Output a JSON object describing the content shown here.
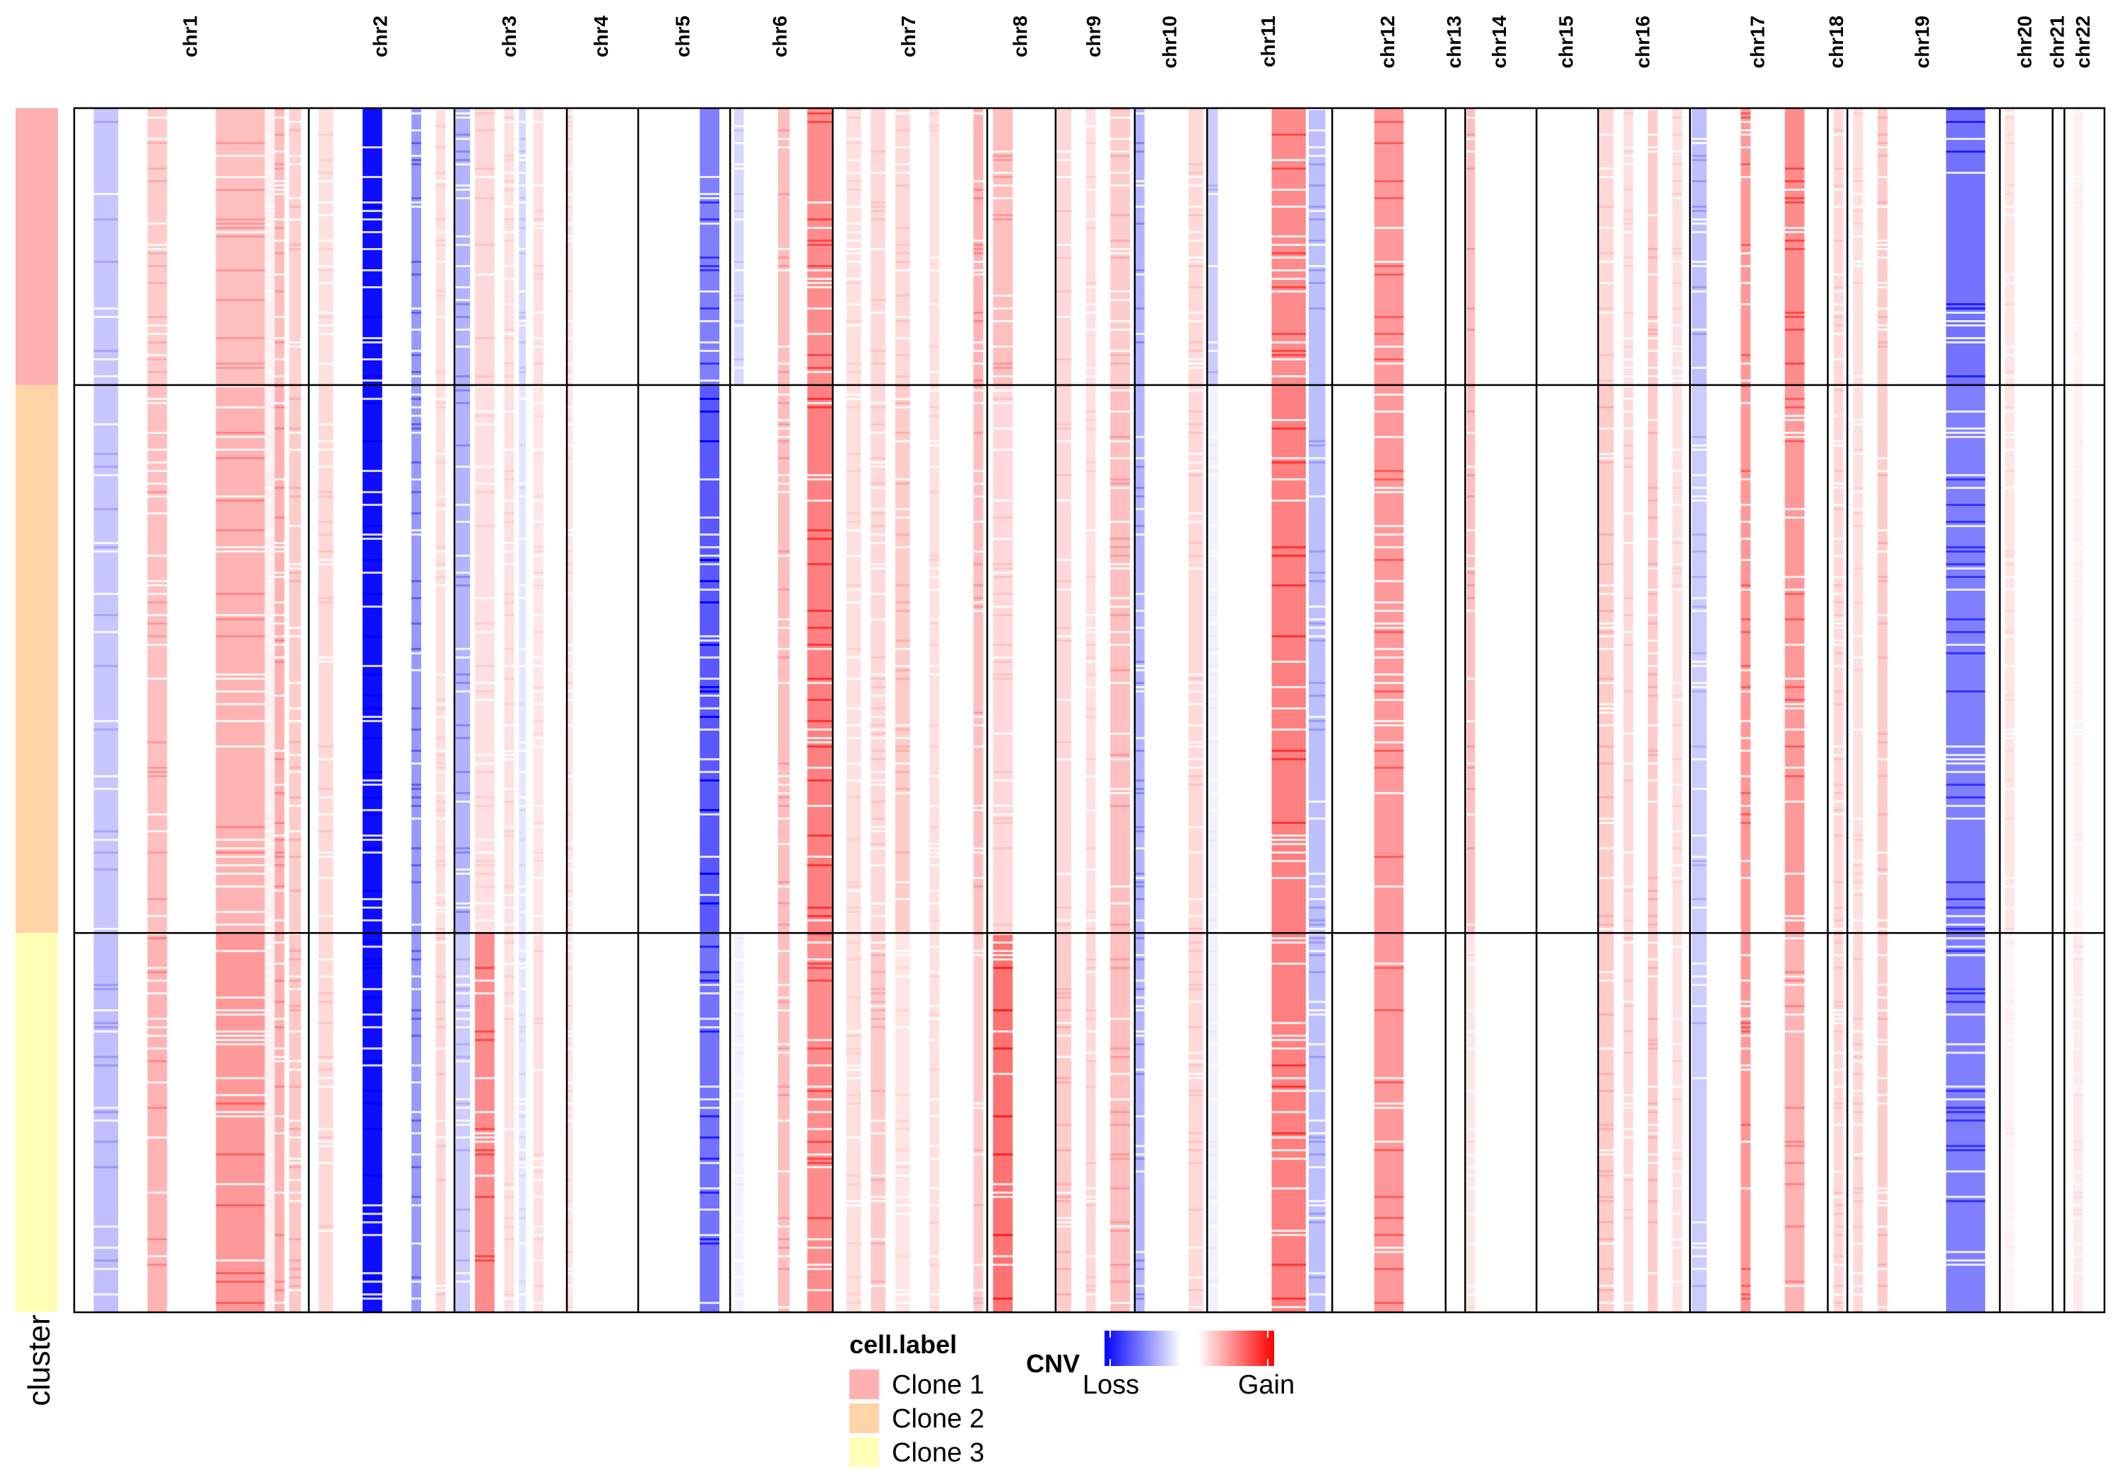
{
  "chart_data": {
    "type": "heatmap",
    "title": "",
    "row_annotation_label": "cluster",
    "legend_cell_label": {
      "title": "cell.label",
      "entries": [
        {
          "name": "Clone 1",
          "color": "#FFB0B0"
        },
        {
          "name": "Clone 2",
          "color": "#FFD4A6"
        },
        {
          "name": "Clone 3",
          "color": "#FFFFB8"
        }
      ]
    },
    "legend_cnv": {
      "title": "CNV",
      "low_label": "Loss",
      "high_label": "Gain",
      "colors": [
        "#0000FF",
        "#FFFFFF",
        "#FF0000"
      ]
    },
    "chromosomes": [
      {
        "name": "chr1",
        "start": 0,
        "end": 2.4
      },
      {
        "name": "chr2",
        "start": 2.4,
        "end": 3.89
      },
      {
        "name": "chr3",
        "start": 3.89,
        "end": 5.04
      },
      {
        "name": "chr4",
        "start": 5.04,
        "end": 5.77
      },
      {
        "name": "chr5",
        "start": 5.77,
        "end": 6.71
      },
      {
        "name": "chr6",
        "start": 6.71,
        "end": 7.76
      },
      {
        "name": "chr7",
        "start": 7.76,
        "end": 9.34
      },
      {
        "name": "chr8",
        "start": 9.34,
        "end": 10.04
      },
      {
        "name": "chr9",
        "start": 10.04,
        "end": 10.85
      },
      {
        "name": "chr10",
        "start": 10.85,
        "end": 11.59
      },
      {
        "name": "chr11",
        "start": 11.59,
        "end": 12.87
      },
      {
        "name": "chr12",
        "start": 12.87,
        "end": 14.03
      },
      {
        "name": "chr13",
        "start": 14.03,
        "end": 14.23
      },
      {
        "name": "chr14",
        "start": 14.23,
        "end": 14.96
      },
      {
        "name": "chr15",
        "start": 14.96,
        "end": 15.59
      },
      {
        "name": "chr16",
        "start": 15.59,
        "end": 16.53
      },
      {
        "name": "chr17",
        "start": 16.53,
        "end": 17.94
      },
      {
        "name": "chr18",
        "start": 17.94,
        "end": 18.14
      },
      {
        "name": "chr19",
        "start": 18.14,
        "end": 19.7
      },
      {
        "name": "chr20",
        "start": 19.7,
        "end": 20.24
      },
      {
        "name": "chr21",
        "start": 20.24,
        "end": 20.36
      },
      {
        "name": "chr22",
        "start": 20.36,
        "end": 20.77
      }
    ],
    "clusters": [
      {
        "name": "Clone 1",
        "start": 0,
        "end": 0.23
      },
      {
        "name": "Clone 2",
        "start": 0.23,
        "end": 0.685
      },
      {
        "name": "Clone 3",
        "start": 0.685,
        "end": 1.0
      }
    ],
    "genome_span": [
      0,
      20.77
    ],
    "value_range": [
      -1,
      1
    ],
    "bands": [
      {
        "start": 0.2,
        "end": 0.45,
        "v": [
          -0.22,
          -0.22,
          -0.25
        ]
      },
      {
        "start": 0.75,
        "end": 0.95,
        "v": [
          0.2,
          0.25,
          0.3
        ]
      },
      {
        "start": 1.45,
        "end": 1.95,
        "v": [
          0.25,
          0.3,
          0.4
        ]
      },
      {
        "start": 1.95,
        "end": 2.05,
        "v": [
          0.05,
          0.05,
          0.05
        ]
      },
      {
        "start": 2.05,
        "end": 2.15,
        "v": [
          0.25,
          0.3,
          0.3
        ]
      },
      {
        "start": 2.2,
        "end": 2.32,
        "v": [
          0.18,
          0.2,
          0.22
        ]
      },
      {
        "start": 2.5,
        "end": 2.65,
        "v": [
          0.12,
          0.15,
          0.15
        ]
      },
      {
        "start": 2.95,
        "end": 3.15,
        "v": [
          -0.95,
          -0.95,
          -0.95
        ]
      },
      {
        "start": 3.45,
        "end": 3.55,
        "v": [
          -0.4,
          -0.4,
          -0.4
        ]
      },
      {
        "start": 3.7,
        "end": 3.8,
        "v": [
          0.12,
          0.12,
          0.15
        ]
      },
      {
        "start": 3.9,
        "end": 4.05,
        "v": [
          -0.3,
          -0.3,
          -0.2
        ]
      },
      {
        "start": 4.1,
        "end": 4.3,
        "v": [
          0.15,
          0.12,
          0.45
        ]
      },
      {
        "start": 4.4,
        "end": 4.5,
        "v": [
          0.12,
          0.12,
          0.12
        ]
      },
      {
        "start": 4.55,
        "end": 4.62,
        "v": [
          -0.15,
          -0.1,
          -0.1
        ]
      },
      {
        "start": 4.7,
        "end": 4.8,
        "v": [
          0.12,
          0.1,
          0.12
        ]
      },
      {
        "start": 5.02,
        "end": 5.1,
        "v": [
          0.1,
          0.1,
          0.1
        ]
      },
      {
        "start": 6.4,
        "end": 6.6,
        "v": [
          -0.5,
          -0.65,
          -0.55
        ]
      },
      {
        "start": 6.75,
        "end": 6.85,
        "v": [
          -0.15,
          0,
          -0.05
        ]
      },
      {
        "start": 7.2,
        "end": 7.32,
        "v": [
          0.25,
          0.25,
          0.25
        ]
      },
      {
        "start": 7.5,
        "end": 7.75,
        "v": [
          0.45,
          0.5,
          0.45
        ]
      },
      {
        "start": 7.9,
        "end": 8.05,
        "v": [
          0.12,
          0.12,
          0.12
        ]
      },
      {
        "start": 8.15,
        "end": 8.3,
        "v": [
          0.15,
          0.15,
          0.2
        ]
      },
      {
        "start": 8.4,
        "end": 8.55,
        "v": [
          0.15,
          0.2,
          0.1
        ]
      },
      {
        "start": 8.75,
        "end": 8.85,
        "v": [
          0.12,
          0.12,
          0.12
        ]
      },
      {
        "start": 9.2,
        "end": 9.3,
        "v": [
          0.3,
          0.25,
          0.2
        ]
      },
      {
        "start": 9.4,
        "end": 9.6,
        "v": [
          0.25,
          0.15,
          0.55
        ]
      },
      {
        "start": 10.05,
        "end": 10.2,
        "v": [
          0.15,
          0.15,
          0.2
        ]
      },
      {
        "start": 10.35,
        "end": 10.45,
        "v": [
          0.12,
          0.12,
          0.15
        ]
      },
      {
        "start": 10.6,
        "end": 10.8,
        "v": [
          0.2,
          0.25,
          0.25
        ]
      },
      {
        "start": 10.85,
        "end": 10.95,
        "v": [
          -0.3,
          -0.3,
          -0.3
        ]
      },
      {
        "start": 11.4,
        "end": 11.55,
        "v": [
          0.15,
          0.15,
          0.15
        ]
      },
      {
        "start": 11.6,
        "end": 11.7,
        "v": [
          -0.2,
          -0.05,
          -0.05
        ]
      },
      {
        "start": 12.25,
        "end": 12.6,
        "v": [
          0.45,
          0.5,
          0.5
        ]
      },
      {
        "start": 12.63,
        "end": 12.8,
        "v": [
          -0.25,
          -0.25,
          -0.25
        ]
      },
      {
        "start": 13.3,
        "end": 13.6,
        "v": [
          0.4,
          0.4,
          0.4
        ]
      },
      {
        "start": 14.25,
        "end": 14.33,
        "v": [
          0.25,
          0.25,
          0.1
        ]
      },
      {
        "start": 15.6,
        "end": 15.75,
        "v": [
          0.15,
          0.2,
          0.2
        ]
      },
      {
        "start": 15.85,
        "end": 15.95,
        "v": [
          0.12,
          0.15,
          0.15
        ]
      },
      {
        "start": 16.1,
        "end": 16.2,
        "v": [
          0.2,
          0.2,
          0.2
        ]
      },
      {
        "start": 16.35,
        "end": 16.45,
        "v": [
          0.12,
          0.12,
          0.12
        ]
      },
      {
        "start": 16.55,
        "end": 16.7,
        "v": [
          -0.25,
          -0.2,
          -0.2
        ]
      },
      {
        "start": 17.05,
        "end": 17.15,
        "v": [
          0.4,
          0.4,
          0.4
        ]
      },
      {
        "start": 17.5,
        "end": 17.7,
        "v": [
          0.45,
          0.4,
          0.3
        ]
      },
      {
        "start": 18.0,
        "end": 18.1,
        "v": [
          0.15,
          0.15,
          0.15
        ]
      },
      {
        "start": 18.2,
        "end": 18.3,
        "v": [
          0.12,
          0.12,
          0.15
        ]
      },
      {
        "start": 18.45,
        "end": 18.55,
        "v": [
          0.2,
          0.2,
          0.2
        ]
      },
      {
        "start": 19.15,
        "end": 19.55,
        "v": [
          -0.55,
          -0.5,
          -0.5
        ]
      },
      {
        "start": 19.75,
        "end": 19.85,
        "v": [
          0.1,
          0.1,
          0.05
        ]
      },
      {
        "start": 20.45,
        "end": 20.55,
        "v": [
          0.05,
          0.05,
          0.08
        ]
      }
    ]
  }
}
